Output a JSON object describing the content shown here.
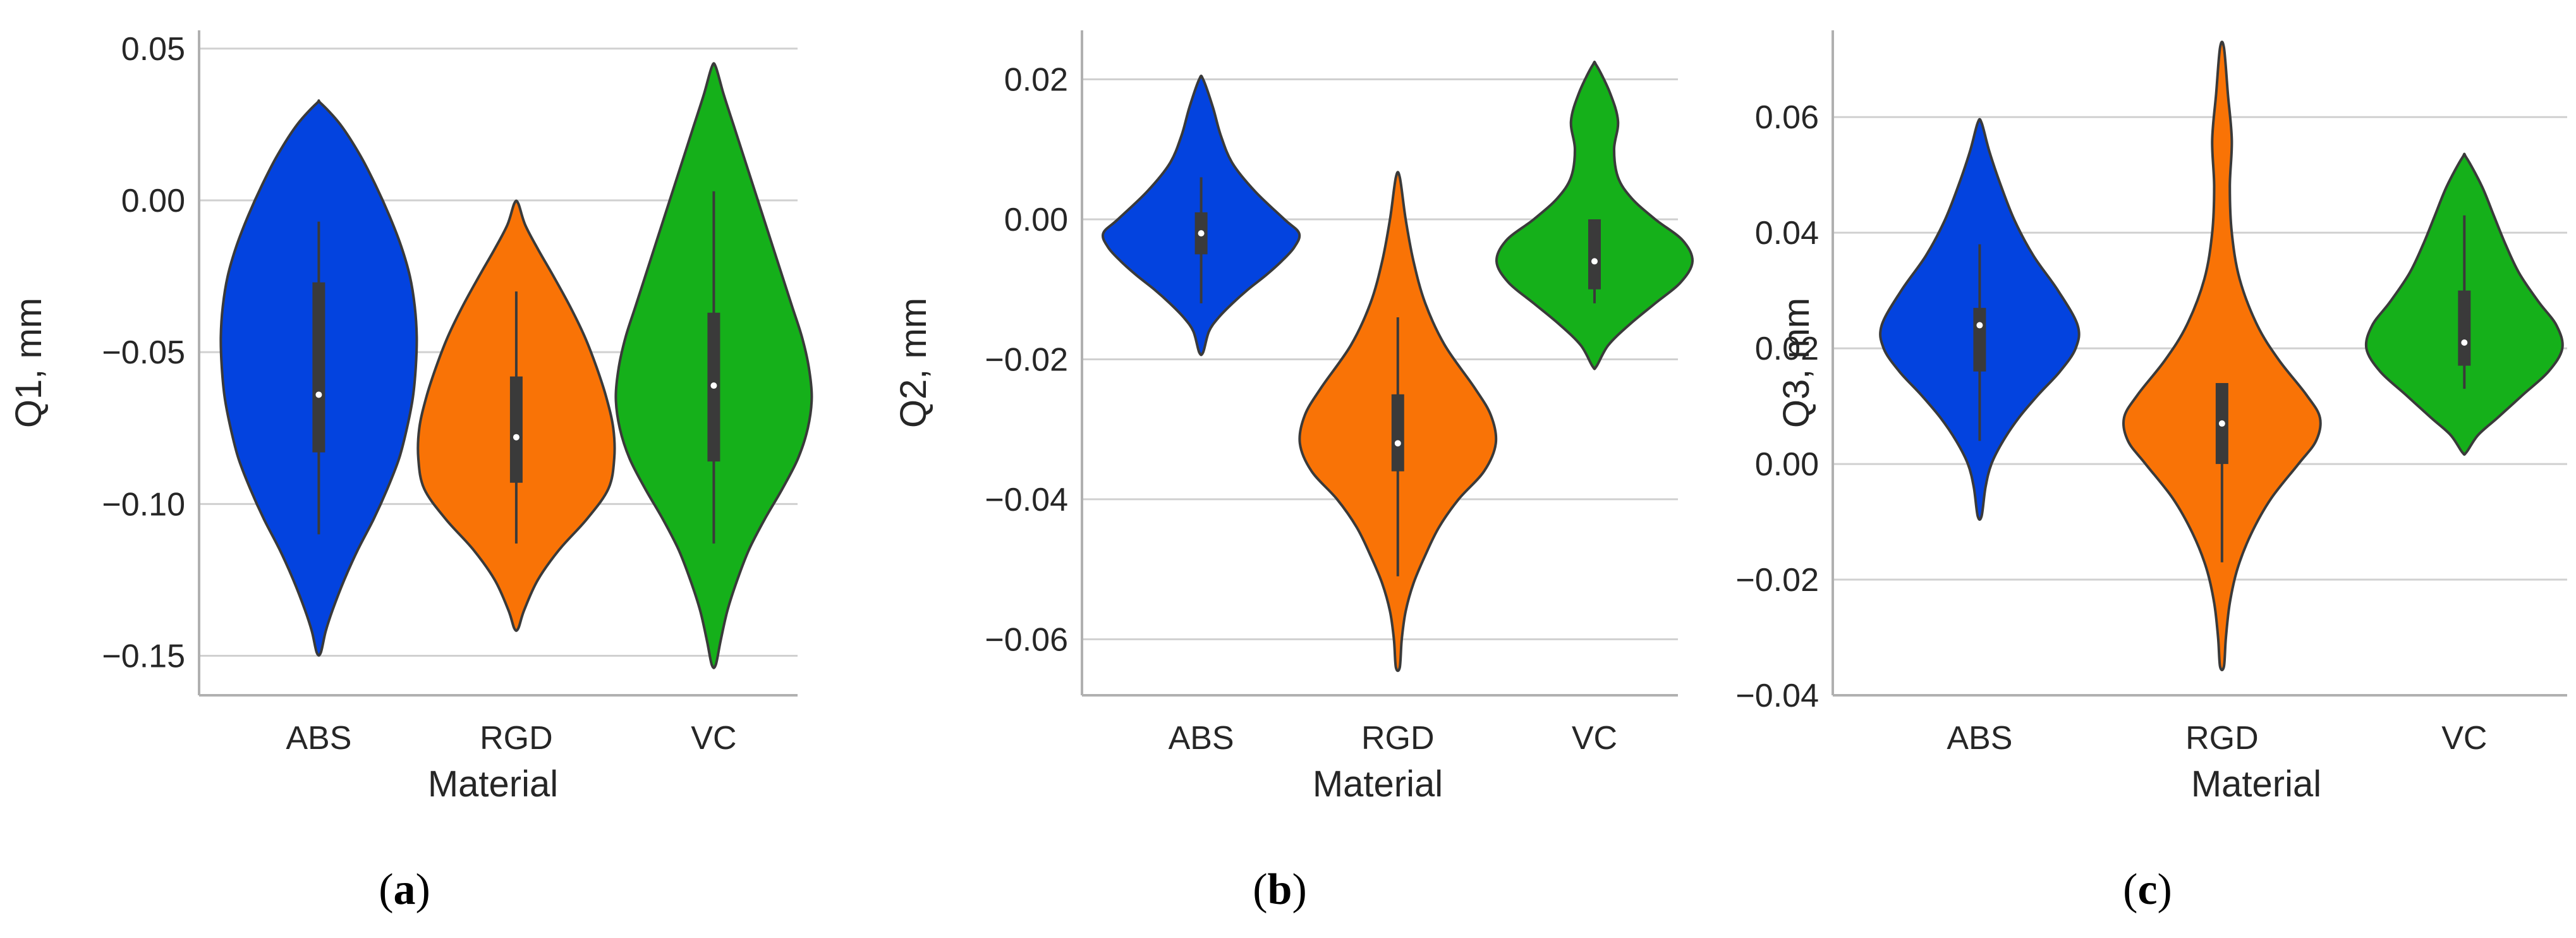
{
  "chart_data": [
    {
      "type": "violin",
      "panel_label": "a",
      "xlabel": "Material",
      "ylabel": "Q1, mm",
      "ylim": [
        -0.163,
        0.056
      ],
      "yticks": [
        0.05,
        0.0,
        -0.05,
        -0.1,
        -0.15
      ],
      "ytick_labels": [
        "0.05",
        "0.00",
        "−0.05",
        "−0.10",
        "−0.15"
      ],
      "grid": true,
      "categories": [
        "ABS",
        "RGD",
        "VC"
      ],
      "series": [
        {
          "name": "ABS",
          "color": "#0343DF",
          "min": -0.149,
          "max": 0.032,
          "q1": -0.083,
          "median": -0.064,
          "q3": -0.027,
          "whisker_low": -0.11,
          "whisker_high": -0.007,
          "density_y": [
            0.032,
            0.025,
            0.015,
            0.005,
            -0.005,
            -0.015,
            -0.025,
            -0.035,
            -0.045,
            -0.055,
            -0.065,
            -0.075,
            -0.085,
            -0.095,
            -0.105,
            -0.115,
            -0.125,
            -0.135,
            -0.142,
            -0.149
          ],
          "density_w": [
            0.02,
            0.22,
            0.42,
            0.58,
            0.72,
            0.84,
            0.93,
            0.98,
            1.0,
            0.99,
            0.96,
            0.9,
            0.82,
            0.7,
            0.56,
            0.4,
            0.26,
            0.14,
            0.07,
            0.02
          ]
        },
        {
          "name": "RGD",
          "color": "#F97306",
          "min": -0.141,
          "max": -0.001,
          "q1": -0.093,
          "median": -0.078,
          "q3": -0.058,
          "whisker_low": -0.113,
          "whisker_high": -0.03,
          "density_y": [
            -0.001,
            -0.008,
            -0.016,
            -0.025,
            -0.035,
            -0.045,
            -0.055,
            -0.065,
            -0.075,
            -0.085,
            -0.095,
            -0.105,
            -0.115,
            -0.125,
            -0.135,
            -0.141
          ],
          "density_w": [
            0.02,
            0.09,
            0.22,
            0.38,
            0.55,
            0.7,
            0.82,
            0.92,
            0.99,
            1.0,
            0.94,
            0.72,
            0.44,
            0.22,
            0.08,
            0.02
          ]
        },
        {
          "name": "VC",
          "color": "#15B01A",
          "min": -0.153,
          "max": 0.044,
          "q1": -0.086,
          "median": -0.061,
          "q3": -0.037,
          "whisker_low": -0.113,
          "whisker_high": 0.003,
          "density_y": [
            0.044,
            0.035,
            0.025,
            0.015,
            0.005,
            -0.005,
            -0.015,
            -0.025,
            -0.035,
            -0.045,
            -0.055,
            -0.065,
            -0.075,
            -0.085,
            -0.095,
            -0.105,
            -0.115,
            -0.125,
            -0.135,
            -0.145,
            -0.153
          ],
          "density_w": [
            0.02,
            0.1,
            0.2,
            0.3,
            0.4,
            0.5,
            0.6,
            0.7,
            0.8,
            0.9,
            0.97,
            1.0,
            0.96,
            0.86,
            0.7,
            0.52,
            0.36,
            0.24,
            0.14,
            0.07,
            0.02
          ]
        }
      ]
    },
    {
      "type": "violin",
      "panel_label": "b",
      "xlabel": "Material",
      "ylabel": "Q2, mm",
      "ylim": [
        -0.068,
        0.027
      ],
      "yticks": [
        0.02,
        0.0,
        -0.02,
        -0.04,
        -0.06
      ],
      "ytick_labels": [
        "0.02",
        "0.00",
        "−0.02",
        "−0.04",
        "−0.06"
      ],
      "grid": true,
      "categories": [
        "ABS",
        "RGD",
        "VC"
      ],
      "series": [
        {
          "name": "ABS",
          "color": "#0343DF",
          "min": -0.019,
          "max": 0.02,
          "q1": -0.005,
          "median": -0.002,
          "q3": 0.001,
          "whisker_low": -0.012,
          "whisker_high": 0.006,
          "density_y": [
            0.02,
            0.016,
            0.012,
            0.008,
            0.004,
            0.0,
            -0.002,
            -0.004,
            -0.006,
            -0.008,
            -0.01,
            -0.012,
            -0.014,
            -0.016,
            -0.019
          ],
          "density_w": [
            0.02,
            0.12,
            0.2,
            0.32,
            0.55,
            0.85,
            1.0,
            0.95,
            0.82,
            0.66,
            0.48,
            0.32,
            0.18,
            0.08,
            0.02
          ]
        },
        {
          "name": "RGD",
          "color": "#F97306",
          "min": -0.064,
          "max": 0.006,
          "q1": -0.036,
          "median": -0.032,
          "q3": -0.025,
          "whisker_low": -0.051,
          "whisker_high": -0.014,
          "density_y": [
            0.006,
            0.0,
            -0.006,
            -0.012,
            -0.018,
            -0.024,
            -0.028,
            -0.032,
            -0.036,
            -0.04,
            -0.044,
            -0.048,
            -0.052,
            -0.056,
            -0.06,
            -0.064
          ],
          "density_w": [
            0.02,
            0.08,
            0.16,
            0.28,
            0.48,
            0.78,
            0.95,
            1.0,
            0.88,
            0.62,
            0.42,
            0.28,
            0.16,
            0.08,
            0.04,
            0.02
          ]
        },
        {
          "name": "VC",
          "color": "#15B01A",
          "min": -0.021,
          "max": 0.022,
          "q1": -0.01,
          "median": -0.006,
          "q3": -0.0,
          "whisker_low": -0.012,
          "whisker_high": 0.0,
          "density_y": [
            0.022,
            0.018,
            0.014,
            0.01,
            0.006,
            0.003,
            0.0,
            -0.003,
            -0.006,
            -0.009,
            -0.012,
            -0.015,
            -0.018,
            -0.021
          ],
          "density_w": [
            0.02,
            0.16,
            0.24,
            0.2,
            0.24,
            0.38,
            0.62,
            0.9,
            1.0,
            0.88,
            0.62,
            0.36,
            0.14,
            0.02
          ]
        }
      ]
    },
    {
      "type": "violin",
      "panel_label": "c",
      "xlabel": "Material",
      "ylabel": "Q3, mm",
      "ylim": [
        -0.04,
        0.075
      ],
      "yticks": [
        0.06,
        0.04,
        0.02,
        0.0,
        -0.02,
        -0.04
      ],
      "ytick_labels": [
        "0.06",
        "0.04",
        "0.02",
        "0.00",
        "−0.02",
        "−0.04"
      ],
      "grid": true,
      "categories": [
        "ABS",
        "RGD",
        "VC"
      ],
      "series": [
        {
          "name": "ABS",
          "color": "#0343DF",
          "min": -0.009,
          "max": 0.059,
          "q1": 0.016,
          "median": 0.024,
          "q3": 0.027,
          "whisker_low": 0.004,
          "whisker_high": 0.038,
          "density_y": [
            0.059,
            0.054,
            0.048,
            0.042,
            0.036,
            0.03,
            0.024,
            0.02,
            0.016,
            0.012,
            0.008,
            0.004,
            0.0,
            -0.004,
            -0.009
          ],
          "density_w": [
            0.02,
            0.1,
            0.22,
            0.36,
            0.55,
            0.8,
            1.0,
            0.98,
            0.82,
            0.6,
            0.4,
            0.24,
            0.12,
            0.06,
            0.02
          ]
        },
        {
          "name": "RGD",
          "color": "#F97306",
          "min": -0.035,
          "max": 0.072,
          "q1": 0.0,
          "median": 0.007,
          "q3": 0.014,
          "whisker_low": -0.017,
          "whisker_high": 0.014,
          "density_y": [
            0.072,
            0.064,
            0.056,
            0.048,
            0.04,
            0.032,
            0.024,
            0.018,
            0.012,
            0.008,
            0.004,
            0.0,
            -0.006,
            -0.012,
            -0.018,
            -0.024,
            -0.03,
            -0.035
          ],
          "density_w": [
            0.02,
            0.06,
            0.1,
            0.08,
            0.1,
            0.18,
            0.36,
            0.58,
            0.86,
            1.0,
            0.96,
            0.78,
            0.5,
            0.3,
            0.16,
            0.08,
            0.04,
            0.02
          ]
        },
        {
          "name": "VC",
          "color": "#15B01A",
          "min": 0.002,
          "max": 0.053,
          "q1": 0.017,
          "median": 0.021,
          "q3": 0.03,
          "whisker_low": 0.013,
          "whisker_high": 0.043,
          "density_y": [
            0.053,
            0.048,
            0.043,
            0.038,
            0.033,
            0.028,
            0.024,
            0.02,
            0.016,
            0.012,
            0.008,
            0.005,
            0.002
          ],
          "density_w": [
            0.02,
            0.18,
            0.3,
            0.42,
            0.56,
            0.76,
            0.94,
            1.0,
            0.86,
            0.6,
            0.34,
            0.14,
            0.02
          ]
        }
      ]
    }
  ]
}
